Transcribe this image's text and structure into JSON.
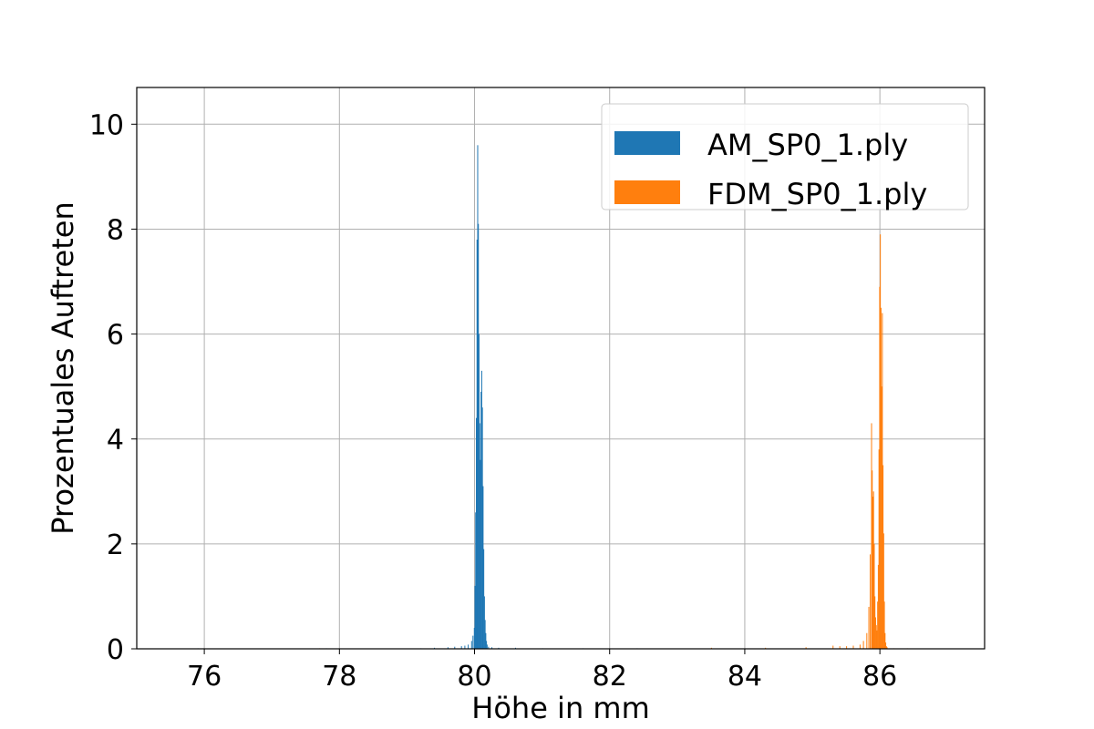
{
  "chart_data": {
    "type": "bar",
    "title": "",
    "xlabel": "Höhe in mm",
    "ylabel": "Prozentuales Auftreten",
    "xlim": [
      75.0,
      87.55
    ],
    "ylim": [
      0,
      10.7
    ],
    "x_ticks": [
      76,
      78,
      80,
      82,
      84,
      86
    ],
    "y_ticks": [
      0,
      2,
      4,
      6,
      8,
      10
    ],
    "grid": true,
    "legend_position": "top-right",
    "bin_width": 0.01,
    "series": [
      {
        "name": "AM_SP0_1.ply",
        "color": "#1f77b4",
        "x": [
          75.9,
          77.8,
          79.2,
          79.4,
          79.6,
          79.7,
          79.8,
          79.85,
          79.9,
          79.95,
          79.97,
          79.99,
          80.0,
          80.01,
          80.02,
          80.03,
          80.04,
          80.05,
          80.06,
          80.07,
          80.08,
          80.09,
          80.1,
          80.11,
          80.12,
          80.13,
          80.14,
          80.15,
          80.16,
          80.17,
          80.18,
          80.2,
          80.25,
          80.35,
          80.6,
          81.0,
          81.6,
          82.4
        ],
        "values": [
          0.01,
          0.01,
          0.01,
          0.02,
          0.03,
          0.04,
          0.05,
          0.06,
          0.08,
          0.15,
          0.25,
          0.4,
          1.2,
          2.6,
          4.4,
          7.8,
          9.6,
          8.1,
          6.0,
          4.3,
          3.6,
          4.9,
          5.3,
          4.6,
          3.1,
          1.9,
          1.0,
          0.55,
          0.3,
          0.15,
          0.08,
          0.04,
          0.03,
          0.02,
          0.02,
          0.01,
          0.01,
          0.01
        ]
      },
      {
        "name": "FDM_SP0_1.ply",
        "color": "#ff7f0e",
        "x": [
          77.7,
          83.5,
          84.3,
          84.9,
          85.3,
          85.4,
          85.5,
          85.6,
          85.7,
          85.75,
          85.8,
          85.83,
          85.85,
          85.87,
          85.88,
          85.89,
          85.9,
          85.91,
          85.92,
          85.93,
          85.94,
          85.95,
          85.96,
          85.97,
          85.98,
          85.99,
          86.0,
          86.01,
          86.02,
          86.03,
          86.04,
          86.05,
          86.06,
          86.07,
          86.08,
          86.09,
          86.1,
          86.2,
          86.4
        ],
        "values": [
          0.01,
          0.02,
          0.02,
          0.03,
          0.06,
          0.05,
          0.05,
          0.06,
          0.08,
          0.15,
          0.3,
          0.8,
          1.8,
          4.3,
          3.4,
          2.9,
          3.0,
          2.0,
          1.0,
          0.6,
          0.45,
          0.35,
          0.9,
          1.6,
          3.8,
          6.9,
          7.9,
          6.5,
          5.0,
          6.4,
          3.5,
          2.2,
          0.9,
          0.3,
          0.12,
          0.05,
          0.03,
          0.01,
          0.01
        ]
      }
    ]
  }
}
